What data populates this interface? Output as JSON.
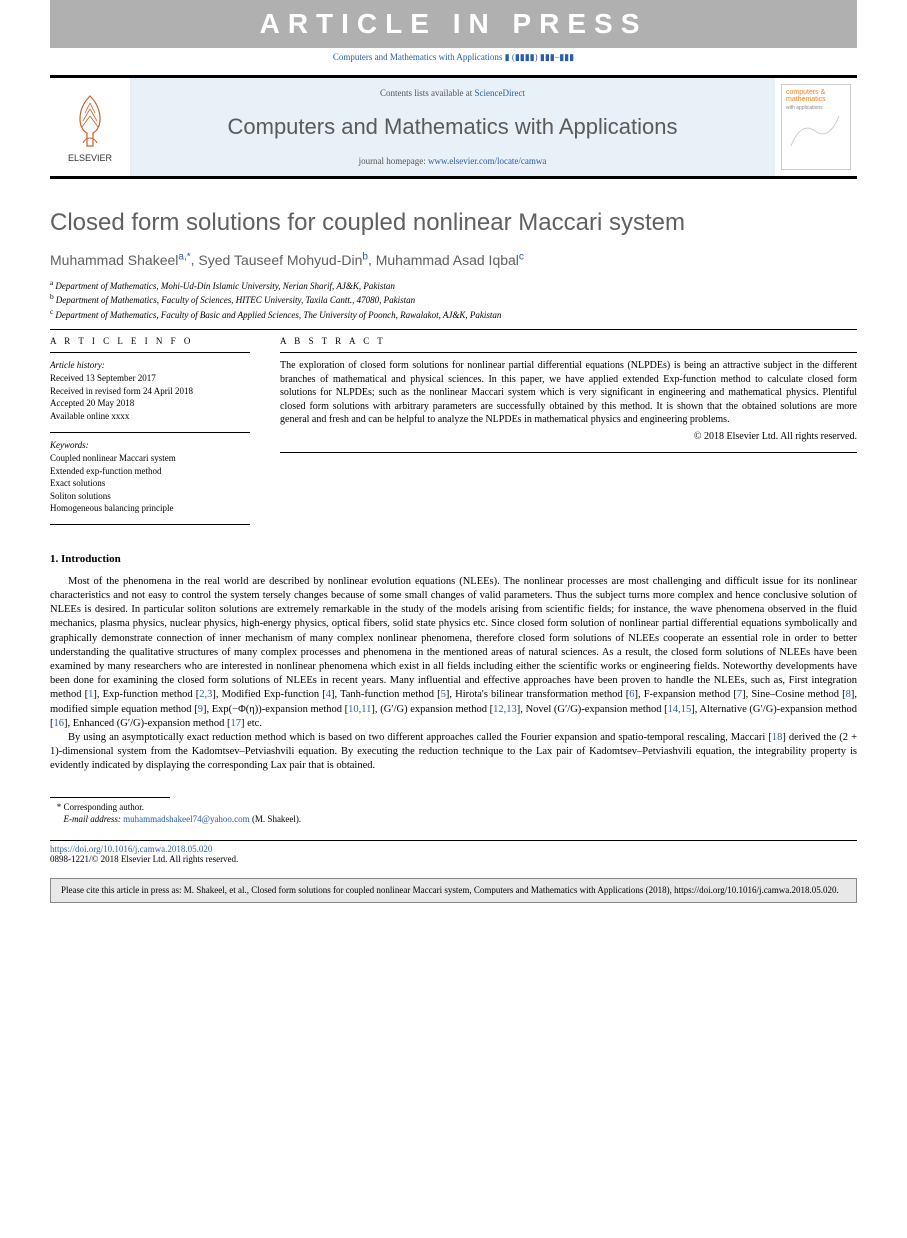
{
  "press_banner": "ARTICLE IN PRESS",
  "journal_ref_line": "Computers and Mathematics with Applications ▮ (▮▮▮▮) ▮▮▮–▮▮▮",
  "header": {
    "contents_prefix": "Contents lists available at ",
    "contents_link": "ScienceDirect",
    "journal_name": "Computers and Mathematics with Applications",
    "homepage_prefix": "journal homepage: ",
    "homepage_link": "www.elsevier.com/locate/camwa",
    "elsevier_label": "ELSEVIER",
    "cover_text": "computers & mathematics"
  },
  "title": "Closed form solutions for coupled nonlinear Maccari system",
  "authors": [
    {
      "name": "Muhammad Shakeel",
      "sup": "a,*"
    },
    {
      "name": "Syed Tauseef Mohyud-Din",
      "sup": "b"
    },
    {
      "name": "Muhammad Asad Iqbal",
      "sup": "c"
    }
  ],
  "affiliations": [
    {
      "sup": "a",
      "text": "Department of Mathematics, Mohi-Ud-Din Islamic University, Nerian Sharif, AJ&K, Pakistan"
    },
    {
      "sup": "b",
      "text": "Department of Mathematics, Faculty of Sciences, HITEC University, Taxila Cantt., 47080, Pakistan"
    },
    {
      "sup": "c",
      "text": "Department of Mathematics, Faculty of Basic and Applied Sciences, The University of Poonch, Rawalakot, AJ&K, Pakistan"
    }
  ],
  "info": {
    "heading": "A R T I C L E   I N F O",
    "history_label": "Article history:",
    "history": [
      "Received 13 September 2017",
      "Received in revised form 24 April 2018",
      "Accepted 20 May 2018",
      "Available online xxxx"
    ],
    "keywords_label": "Keywords:",
    "keywords": [
      "Coupled nonlinear Maccari system",
      "Extended exp-function method",
      "Exact solutions",
      "Soliton solutions",
      "Homogeneous balancing principle"
    ]
  },
  "abstract": {
    "heading": "A B S T R A C T",
    "text": "The exploration of closed form solutions for nonlinear partial differential equations (NLPDEs) is being an attractive subject in the different branches of mathematical and physical sciences. In this paper, we have applied extended Exp-function method to calculate closed form solutions for NLPDEs; such as the nonlinear Maccari system which is very significant in engineering and mathematical physics. Plentiful closed form solutions with arbitrary parameters are successfully obtained by this method. It is shown that the obtained solutions are more general and fresh and can be helpful to analyze the NLPDEs in mathematical physics and engineering problems.",
    "copyright": "© 2018 Elsevier Ltd. All rights reserved."
  },
  "section1": {
    "heading": "1.  Introduction",
    "p1": "Most of the phenomena in the real world are described by nonlinear evolution equations (NLEEs). The nonlinear processes are most challenging and difficult issue for its nonlinear characteristics and not easy to control the system tersely changes because of some small changes of valid parameters.  Thus the subject turns more complex and hence conclusive solution of NLEEs is desired. In particular soliton solutions are extremely remarkable in the study of the models arising from scientific fields; for instance, the wave phenomena observed in the fluid mechanics, plasma physics, nuclear physics, high-energy physics, optical fibers, solid state physics etc. Since closed form solution of nonlinear partial differential equations symbolically and graphically demonstrate connection of inner mechanism of many complex nonlinear phenomena, therefore closed form solutions of NLEEs cooperate an essential role in order to better understanding the qualitative structures of many complex processes and phenomena in the mentioned areas of natural  sciences. As a result, the closed form solutions of NLEEs have been examined by many researchers who are interested in nonlinear phenomena which exist in all fields including either the scientific works or engineering fields. Noteworthy developments have been done for examining the closed form solutions of NLEEs in recent years. Many influential and effective approaches have been proven to handle the NLEEs, such as, First integration method [1], Exp-function method [2,3], Modified Exp-function [4], Tanh-function method [5], Hirota's bilinear transformation method [6], F-expansion method [7], Sine–Cosine method [8], modified simple equation method [9], Exp(−Φ(η))-expansion method [10,11], (G′/G) expansion method [12,13], Novel (G′/G)-expansion method [14,15], Alternative (G′/G)-expansion method [16], Enhanced (G′/G)-expansion method [17] etc.",
    "p2": "By using an asymptotically exact reduction method which is based on two different approaches called the Fourier expansion and spatio-temporal rescaling, Maccari [18] derived the (2 + 1)-dimensional system from the Kadomtsev–Petviashvili equation. By executing the reduction technique to the Lax pair of Kadomtsev–Petviashvili equation, the integrability property is evidently indicated by displaying the corresponding Lax pair that is obtained."
  },
  "footnote": {
    "corr": "Corresponding author.",
    "email_label": "E-mail address:",
    "email": "muhammadshakeel74@yahoo.com",
    "email_suffix": "(M. Shakeel)."
  },
  "doi": {
    "link": "https://doi.org/10.1016/j.camwa.2018.05.020",
    "line2": "0898-1221/© 2018 Elsevier Ltd. All rights reserved."
  },
  "citebox": "Please cite this article in press as: M. Shakeel, et al., Closed form solutions for coupled nonlinear Maccari system, Computers and Mathematics with Applications (2018), https://doi.org/10.1016/j.camwa.2018.05.020.",
  "colors": {
    "banner_bg": "#b0b0b0",
    "link": "#2a5caa",
    "header_bg": "#e8f0f8",
    "title_gray": "#606060",
    "citebox_bg": "#e8e8e8"
  }
}
